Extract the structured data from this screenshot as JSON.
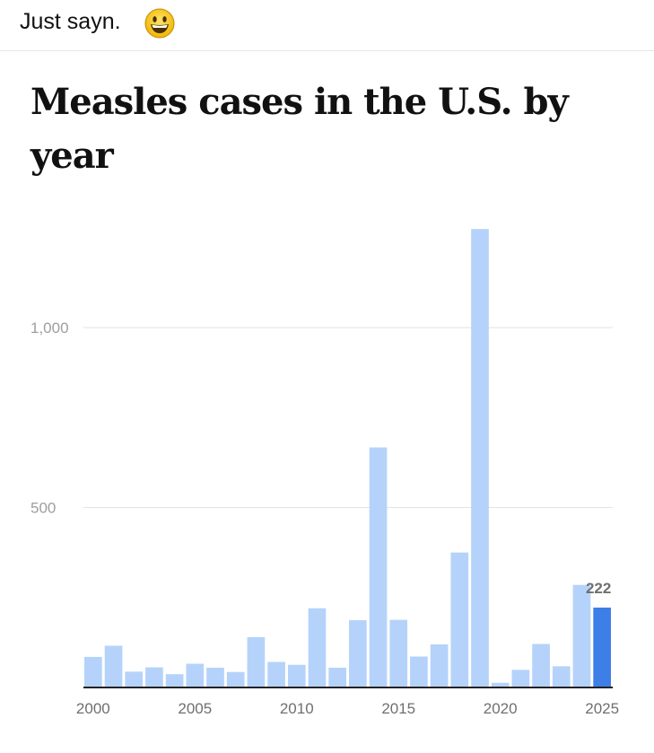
{
  "post": {
    "text": "Just sayn.",
    "emoji_icon": "grinning-face-icon"
  },
  "chart_data": {
    "type": "bar",
    "title": "Measles cases in the U.S. by year",
    "xlabel": "",
    "ylabel": "",
    "ylim": [
      0,
      1250
    ],
    "yticks": [
      500,
      1000
    ],
    "ytick_labels": [
      "500",
      "1,000"
    ],
    "x": [
      2000,
      2001,
      2002,
      2003,
      2004,
      2005,
      2006,
      2007,
      2008,
      2009,
      2010,
      2011,
      2012,
      2013,
      2014,
      2015,
      2016,
      2017,
      2018,
      2019,
      2020,
      2021,
      2022,
      2023,
      2024,
      2025
    ],
    "xtick_labels": [
      "2000",
      "2005",
      "2010",
      "2015",
      "2020",
      "2025"
    ],
    "xtick_years": [
      2000,
      2005,
      2010,
      2015,
      2020,
      2025
    ],
    "values": [
      85,
      116,
      44,
      56,
      37,
      66,
      55,
      43,
      140,
      71,
      63,
      220,
      55,
      187,
      667,
      188,
      86,
      120,
      375,
      1274,
      13,
      49,
      121,
      59,
      285,
      222
    ],
    "highlight_index": 25,
    "highlight_label": "222",
    "colors": {
      "bar": "#b5d3fa",
      "highlight": "#3d7fe6",
      "grid": "#e3e3e3",
      "axis": "#222222"
    },
    "grid": true
  }
}
